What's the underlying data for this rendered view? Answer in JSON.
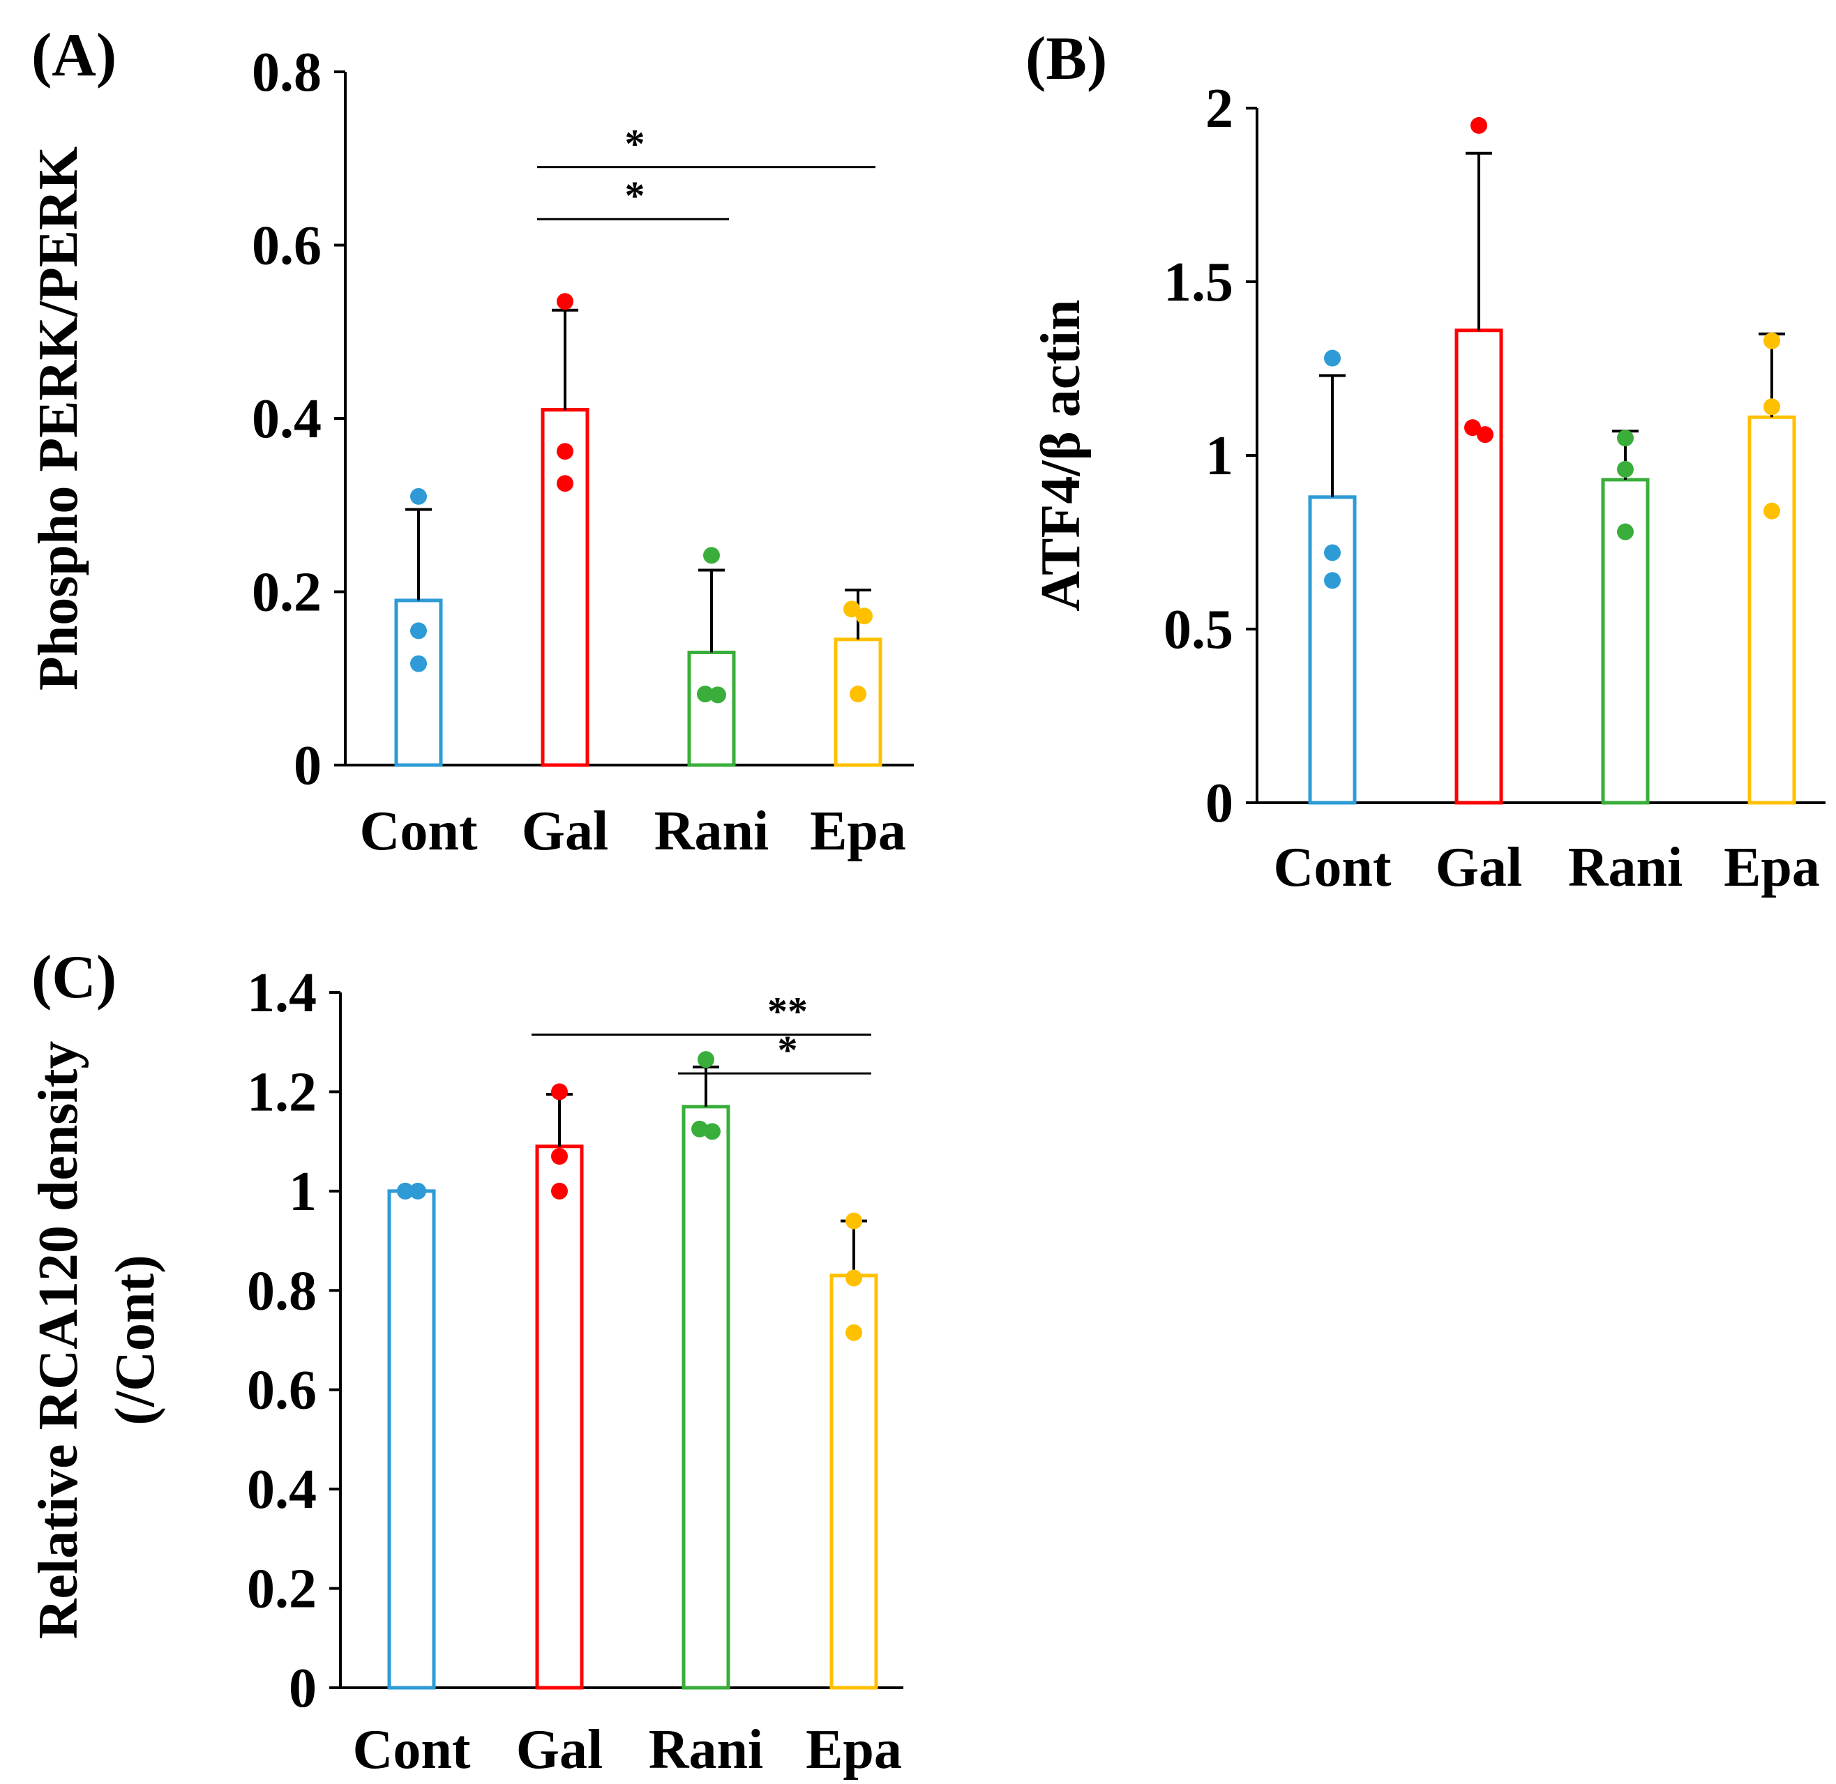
{
  "colors": {
    "Cont": "#2e9bd6",
    "Gal": "#ff0000",
    "Rani": "#3aae3a",
    "Epa": "#ffc000",
    "axis": "#000000"
  },
  "chart_data": [
    {
      "id": "A",
      "type": "bar",
      "panel_label": "(A)",
      "ylabel": "Phospho PERK/PERK",
      "ylabel_lines": [
        "Phospho PERK/PERK"
      ],
      "xlabel": "",
      "categories": [
        "Cont",
        "Gal",
        "Rani",
        "Epa"
      ],
      "values": [
        0.19,
        0.41,
        0.13,
        0.145
      ],
      "errors": [
        0.105,
        0.115,
        0.095,
        0.057
      ],
      "points": [
        [
          0.31,
          0.155,
          0.117
        ],
        [
          0.535,
          0.362,
          0.325
        ],
        [
          0.242,
          0.082,
          0.081
        ],
        [
          0.18,
          0.172,
          0.082
        ]
      ],
      "ylim": [
        0,
        0.8
      ],
      "yticks": [
        0,
        0.2,
        0.4,
        0.6,
        0.8
      ],
      "ytick_labels": [
        "0",
        "0.2",
        "0.4",
        "0.6",
        "0.8"
      ],
      "significance": [
        {
          "from": "Gal",
          "to": "Epa",
          "label": "*",
          "y": 0.69
        },
        {
          "from": "Gal",
          "to": "Rani",
          "label": "*",
          "y": 0.63
        }
      ]
    },
    {
      "id": "B",
      "type": "bar",
      "panel_label": "(B)",
      "ylabel": "ATF4/β actin",
      "ylabel_lines": [
        "ATF4/β actin"
      ],
      "xlabel": "",
      "categories": [
        "Cont",
        "Gal",
        "Rani",
        "Epa"
      ],
      "values": [
        0.88,
        1.36,
        0.93,
        1.11
      ],
      "errors": [
        0.35,
        0.51,
        0.14,
        0.24
      ],
      "points": [
        [
          1.28,
          0.72,
          0.64
        ],
        [
          1.95,
          1.08,
          1.06
        ],
        [
          1.05,
          0.96,
          0.78
        ],
        [
          1.33,
          1.14,
          0.84
        ]
      ],
      "ylim": [
        0,
        2
      ],
      "yticks": [
        0,
        0.5,
        1,
        1.5,
        2
      ],
      "ytick_labels": [
        "0",
        "0.5",
        "1",
        "1.5",
        "2"
      ],
      "significance": []
    },
    {
      "id": "C",
      "type": "bar",
      "panel_label": "(C)",
      "ylabel": "Relative RCA120 density (/Cont)",
      "ylabel_lines": [
        "Relative RCA120 density",
        "(/Cont)"
      ],
      "xlabel": "",
      "categories": [
        "Cont",
        "Gal",
        "Rani",
        "Epa"
      ],
      "values": [
        1.0,
        1.09,
        1.17,
        0.83
      ],
      "errors": [
        0.0,
        0.105,
        0.08,
        0.11
      ],
      "points": [
        [
          1.0,
          1.0,
          1.0
        ],
        [
          1.2,
          1.07,
          1.0
        ],
        [
          1.265,
          1.125,
          1.12
        ],
        [
          0.94,
          0.825,
          0.715
        ]
      ],
      "ylim": [
        0,
        1.4
      ],
      "yticks": [
        0,
        0.2,
        0.4,
        0.6,
        0.8,
        1,
        1.2,
        1.4
      ],
      "ytick_labels": [
        "0",
        "0.2",
        "0.4",
        "0.6",
        "0.8",
        "1",
        "1.2",
        "1.4"
      ],
      "significance": [
        {
          "from": "Gal",
          "to": "Epa",
          "label": "**",
          "y": 1.315
        },
        {
          "from": "Rani",
          "to": "Epa",
          "label": "*",
          "y": 1.237
        }
      ]
    }
  ]
}
